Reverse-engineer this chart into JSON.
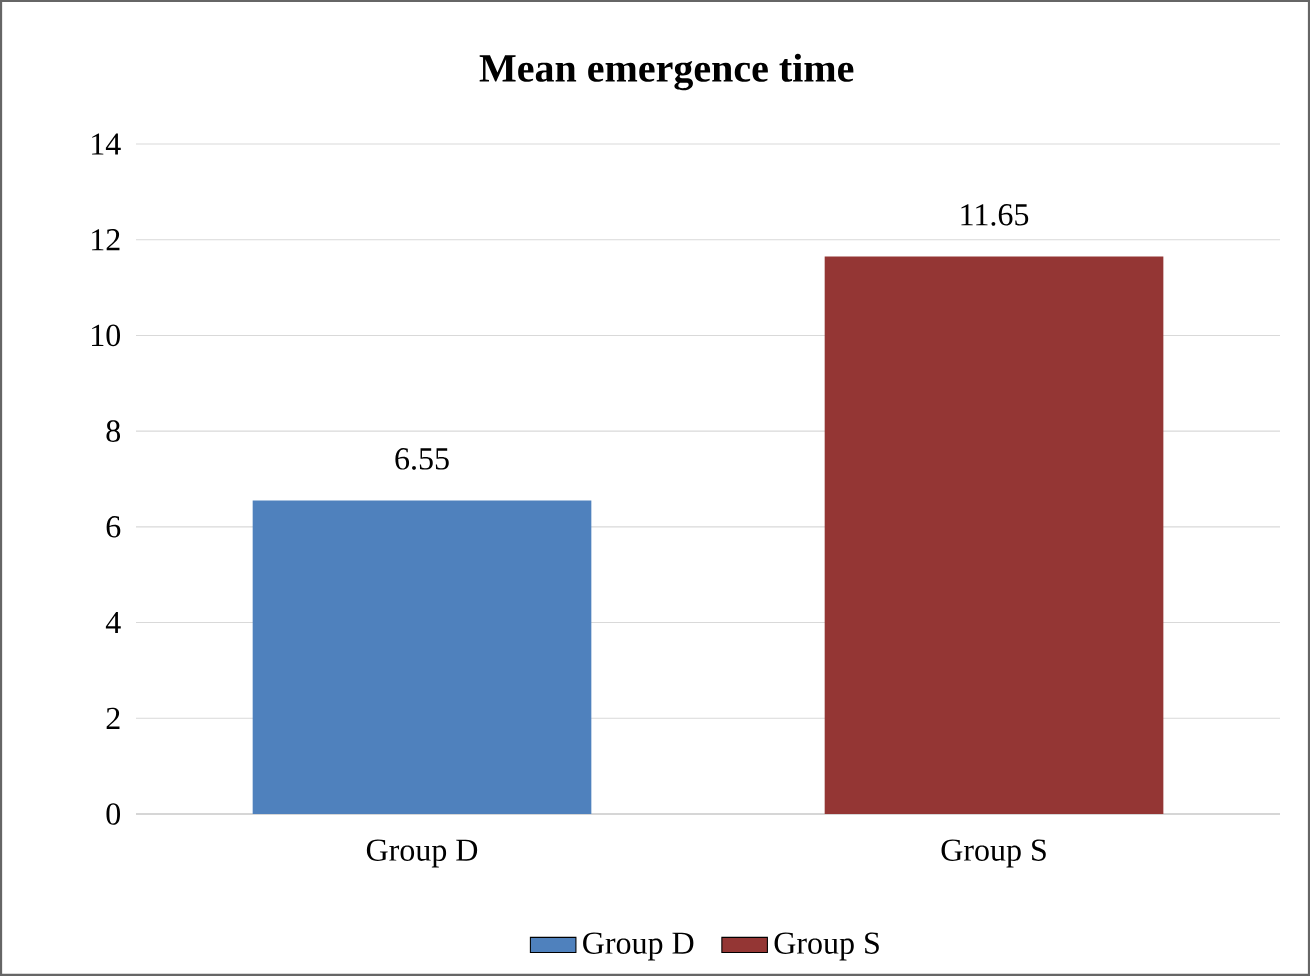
{
  "chart_data": {
    "type": "bar",
    "title": "Mean emergence time",
    "categories": [
      "Group D",
      "Group S"
    ],
    "series": [
      {
        "name": "Group D",
        "color": "#4f81bd",
        "values": [
          6.55,
          null
        ]
      },
      {
        "name": "Group S",
        "color": "#943634",
        "values": [
          null,
          11.65
        ]
      }
    ],
    "ylim": [
      0,
      14
    ],
    "yticks": [
      0,
      2,
      4,
      6,
      8,
      10,
      12,
      14
    ],
    "grid": "y",
    "data_labels": true,
    "legend": "bottom"
  }
}
